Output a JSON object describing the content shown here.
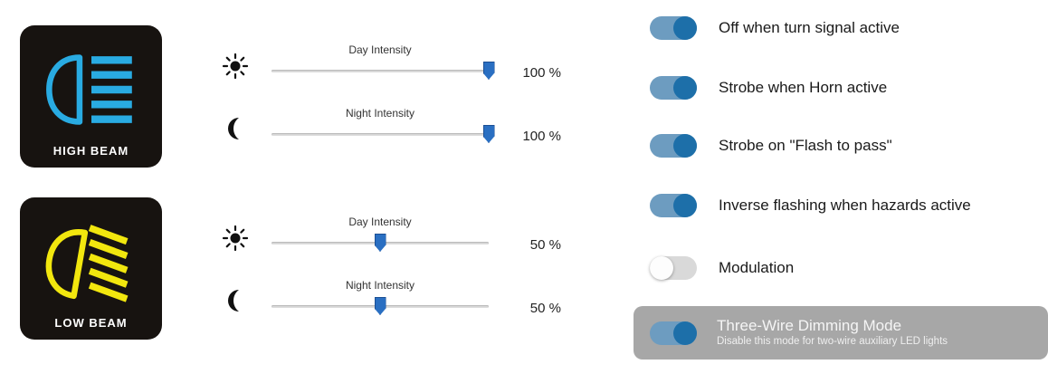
{
  "colors": {
    "accent_blue": "#1d6fa9",
    "toggle_track_on": "#6d9cc0",
    "toggle_track_off": "#d9d9d9",
    "high_beam_blue": "#29abe2",
    "low_beam_yellow": "#f2e70e",
    "panel_gray": "#a7a7a7",
    "slider_thumb_blue": "#2a6fc2"
  },
  "high_beam": {
    "label": "HIGH BEAM",
    "sliders": [
      {
        "icon": "sun-icon",
        "label": "Day Intensity",
        "value": 100,
        "display": "100 %"
      },
      {
        "icon": "moon-icon",
        "label": "Night Intensity",
        "value": 100,
        "display": "100 %"
      }
    ]
  },
  "low_beam": {
    "label": "LOW BEAM",
    "sliders": [
      {
        "icon": "sun-icon",
        "label": "Day Intensity",
        "value": 50,
        "display": "50 %"
      },
      {
        "icon": "moon-icon",
        "label": "Night Intensity",
        "value": 50,
        "display": "50 %"
      }
    ]
  },
  "toggles": [
    {
      "label": "Off when turn signal active",
      "on": true
    },
    {
      "label": "Strobe when Horn active",
      "on": true
    },
    {
      "label": "Strobe on \"Flash to pass\"",
      "on": true
    },
    {
      "label": "Inverse flashing when hazards active",
      "on": true
    },
    {
      "label": "Modulation",
      "on": false
    }
  ],
  "dimming_panel": {
    "title": "Three-Wire Dimming Mode",
    "subtitle": "Disable this mode for two-wire auxiliary LED lights",
    "on": true
  }
}
